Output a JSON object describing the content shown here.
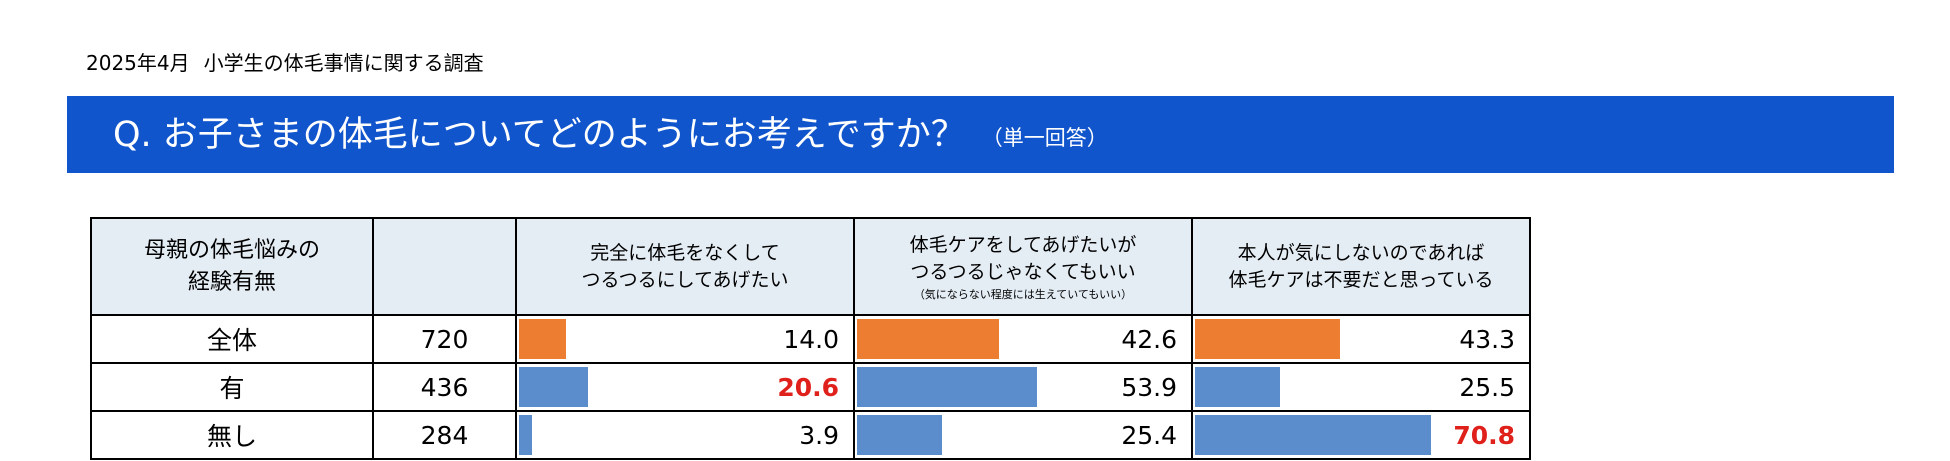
{
  "survey_label": {
    "date": "2025年4月",
    "title": "小学生の体毛事情に関する調査"
  },
  "question": {
    "text": "Q. お子さまの体毛についてどのようにお考えですか？",
    "note": "（単一回答）"
  },
  "colors": {
    "banner": "#1155cc",
    "total_bar": "#ed7d31",
    "group_bar": "#5b8ccc",
    "highlight_text": "#e0201b",
    "header_bg": "#e4ecf4"
  },
  "chart_data": {
    "type": "table",
    "row_header": [
      "母親の体毛悩みの",
      "経験有無"
    ],
    "columns": [
      {
        "lines": [
          "完全に体毛をなくして",
          "つるつるにしてあげたい"
        ],
        "sub": ""
      },
      {
        "lines": [
          "体毛ケアをしてあげたいが",
          "つるつるじゃなくてもいい"
        ],
        "sub": "（気にならない程度には生えていてもいい）"
      },
      {
        "lines": [
          "本人が気にしないのであれば",
          "体毛ケアは不要だと思っている"
        ],
        "sub": ""
      }
    ],
    "rows": [
      {
        "label": "全体",
        "n": "720",
        "values": [
          "14.0",
          "42.6",
          "43.3"
        ],
        "bar_color": "#ed7d31",
        "highlight": [
          false,
          false,
          false
        ]
      },
      {
        "label": "有",
        "n": "436",
        "values": [
          "20.6",
          "53.9",
          "25.5"
        ],
        "bar_color": "#5b8ccc",
        "highlight": [
          true,
          false,
          false
        ]
      },
      {
        "label": "無し",
        "n": "284",
        "values": [
          "3.9",
          "25.4",
          "70.8"
        ],
        "bar_color": "#5b8ccc",
        "highlight": [
          false,
          false,
          true
        ]
      }
    ],
    "value_range": [
      0,
      100
    ]
  }
}
